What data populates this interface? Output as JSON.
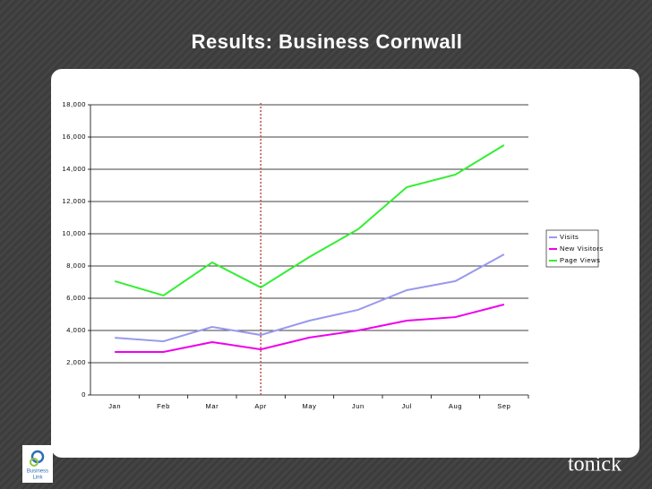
{
  "chart_data": {
    "type": "line",
    "title": "Results: Business Cornwall",
    "categories": [
      "Jan",
      "Feb",
      "Mar",
      "Apr",
      "May",
      "Jun",
      "Jul",
      "Aug",
      "Sep"
    ],
    "series": [
      {
        "name": "Visits",
        "color": "#9999ee",
        "values": [
          3550,
          3330,
          4220,
          3720,
          4610,
          5280,
          6500,
          7060,
          8720
        ]
      },
      {
        "name": "New Visitors",
        "color": "#ee00ee",
        "values": [
          2670,
          2670,
          3280,
          2830,
          3560,
          4000,
          4610,
          4830,
          5610
        ]
      },
      {
        "name": "Page Views",
        "color": "#33ee33",
        "values": [
          7060,
          6170,
          8220,
          6670,
          8560,
          10280,
          12890,
          13670,
          15500
        ]
      }
    ],
    "ylim": [
      0,
      18000
    ],
    "yticks": [
      0,
      {
        "value": 2000,
        "label": "2,000"
      },
      {
        "value": 4000,
        "label": "4,000"
      },
      {
        "value": 6000,
        "label": "6,000"
      },
      {
        "value": 8000,
        "label": "8,000"
      },
      {
        "value": 10000,
        "label": "10,000"
      },
      {
        "value": 12000,
        "label": "12,000"
      },
      {
        "value": 14000,
        "label": "14,000"
      },
      {
        "value": 16000,
        "label": "16,000"
      },
      {
        "value": 18000,
        "label": "18,000"
      }
    ],
    "grid": true,
    "legend": "right",
    "reference_line": {
      "category": "Apr",
      "color": "#c0504d"
    }
  },
  "logos": {
    "left_lines": [
      "Business",
      "Link"
    ],
    "right": "tonick"
  }
}
